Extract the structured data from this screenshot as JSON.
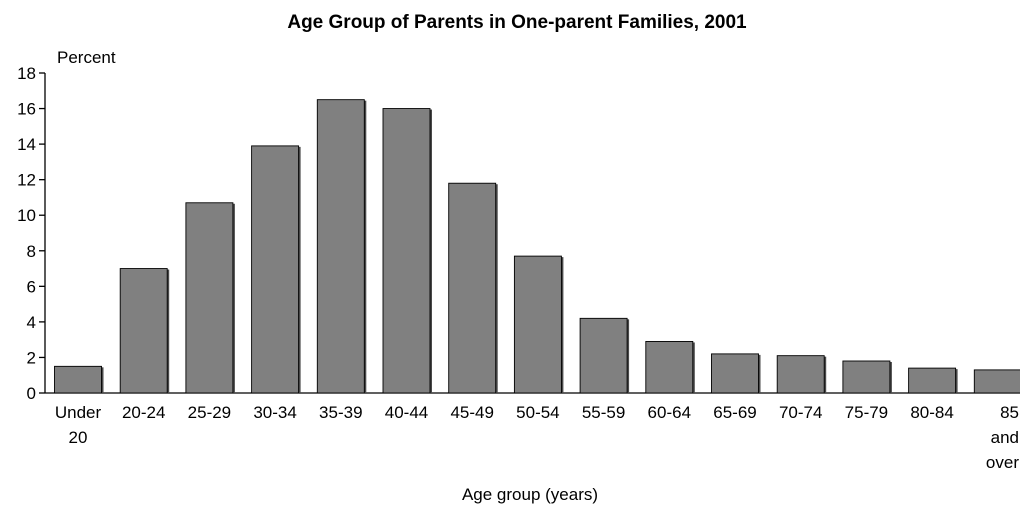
{
  "chart_data": {
    "type": "bar",
    "title": "Age Group of Parents in One-parent Families, 2001",
    "ylabel": "Percent",
    "xlabel": "Age group (years)",
    "ylim": [
      0,
      18
    ],
    "yticks": [
      0,
      2,
      4,
      6,
      8,
      10,
      12,
      14,
      16,
      18
    ],
    "categories": [
      "Under 20",
      "20-24",
      "25-29",
      "30-34",
      "35-39",
      "40-44",
      "45-49",
      "50-54",
      "55-59",
      "60-64",
      "65-69",
      "70-74",
      "75-79",
      "80-84",
      "85 and over"
    ],
    "category_lines": [
      [
        "Under",
        "20"
      ],
      [
        "20-24"
      ],
      [
        "25-29"
      ],
      [
        "30-34"
      ],
      [
        "35-39"
      ],
      [
        "40-44"
      ],
      [
        "45-49"
      ],
      [
        "50-54"
      ],
      [
        "55-59"
      ],
      [
        "60-64"
      ],
      [
        "65-69"
      ],
      [
        "70-74"
      ],
      [
        "75-79"
      ],
      [
        "80-84"
      ],
      [
        "85",
        "and",
        "over"
      ]
    ],
    "values": [
      1.5,
      7.0,
      10.7,
      13.9,
      16.5,
      16.0,
      11.8,
      7.7,
      4.2,
      2.9,
      2.2,
      2.1,
      1.8,
      1.4,
      1.3
    ],
    "grid": false,
    "colors": {
      "bar": "#808080",
      "bar_shadow": "#4a4a4a",
      "axis": "#000000"
    }
  }
}
